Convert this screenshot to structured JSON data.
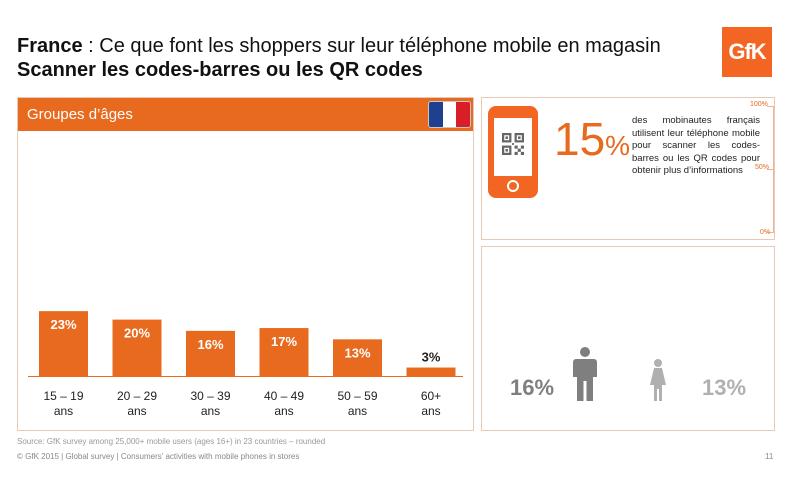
{
  "header": {
    "title_bold": "France",
    "title_rest": " : Ce que font les shoppers sur leur téléphone mobile en magasin",
    "subtitle": "Scanner les codes-barres ou les QR codes",
    "logo": "GfK"
  },
  "left_panel": {
    "header": "Groupes d’âges",
    "flag_colors": [
      "#1f3f8f",
      "#ffffff",
      "#d81e26"
    ]
  },
  "chart_data": {
    "type": "bar",
    "categories": [
      [
        "15 – 19",
        "ans"
      ],
      [
        "20 – 29",
        "ans"
      ],
      [
        "30 – 39",
        "ans"
      ],
      [
        "40 – 49",
        "ans"
      ],
      [
        "50 – 59",
        "ans"
      ],
      [
        "60+",
        "ans"
      ]
    ],
    "values": [
      23,
      20,
      16,
      17,
      13,
      3
    ],
    "data_labels": [
      "23%",
      "20%",
      "16%",
      "17%",
      "13%",
      "3%"
    ],
    "ylim": [
      0,
      100
    ],
    "title": "",
    "xlabel": "",
    "ylabel": "",
    "bar_color": "#e86a1e",
    "grid": false
  },
  "summary": {
    "percent": "15",
    "percent_sign": "%",
    "description": "des mobinautes français utilisent leur téléphone mobile pour scanner les codes-barres ou les QR codes pour obtenir plus d’informations",
    "scale": [
      "100%",
      "50%",
      "0%"
    ],
    "level": 15
  },
  "gender": {
    "male_pct": "16%",
    "female_pct": "13%",
    "male_icon": "male-person-icon",
    "female_icon": "female-person-icon"
  },
  "source": "Source: GfK survey among 25,000+ mobile users (ages 16+) in 23 countries – rounded",
  "footer": "© GfK 2015 | Global survey | Consumers’ activities with mobile phones in stores",
  "page_number": "11",
  "accent_color": "#e86a1e"
}
